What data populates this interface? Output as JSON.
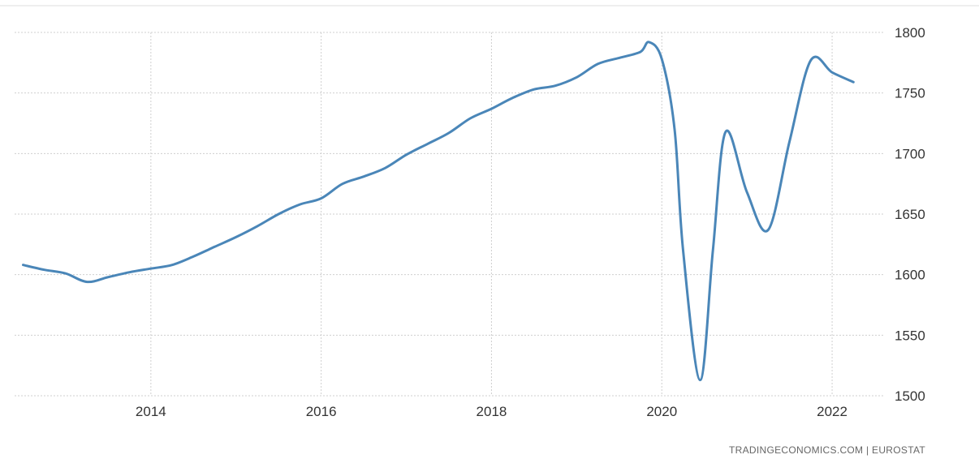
{
  "chart_data": {
    "type": "line",
    "title": "",
    "xlabel": "",
    "ylabel": "",
    "xlim": [
      2012.4,
      2022.6
    ],
    "ylim": [
      1500,
      1800
    ],
    "x_ticks": [
      "2014",
      "2016",
      "2018",
      "2020",
      "2022"
    ],
    "y_ticks": [
      "1500",
      "1550",
      "1600",
      "1650",
      "1700",
      "1750",
      "1800"
    ],
    "grid": true,
    "legend": "none",
    "series_color": "#4a86b8",
    "series": [
      {
        "x": [
          2012.5,
          2012.75,
          2013.0,
          2013.25,
          2013.5,
          2013.75,
          2014.0,
          2014.25,
          2014.5,
          2014.75,
          2015.0,
          2015.25,
          2015.5,
          2015.75,
          2016.0,
          2016.25,
          2016.5,
          2016.75,
          2017.0,
          2017.25,
          2017.5,
          2017.75,
          2018.0,
          2018.25,
          2018.5,
          2018.75,
          2019.0,
          2019.25,
          2019.5,
          2019.75,
          2019.85,
          2020.0,
          2020.15,
          2020.25,
          2020.45,
          2020.6,
          2020.75,
          2021.0,
          2021.25,
          2021.5,
          2021.75,
          2022.0,
          2022.25
        ],
        "values": [
          1608,
          1604,
          1601,
          1594,
          1598,
          1602,
          1605,
          1608,
          1615,
          1623,
          1631,
          1640,
          1650,
          1658,
          1663,
          1675,
          1681,
          1688,
          1699,
          1708,
          1717,
          1729,
          1737,
          1746,
          1753,
          1756,
          1763,
          1774,
          1779,
          1784,
          1792,
          1778,
          1720,
          1620,
          1513,
          1620,
          1718,
          1668,
          1637,
          1710,
          1777,
          1767,
          1759
        ]
      }
    ]
  },
  "source_text": "TRADINGECONOMICS.COM  |  EUROSTAT"
}
